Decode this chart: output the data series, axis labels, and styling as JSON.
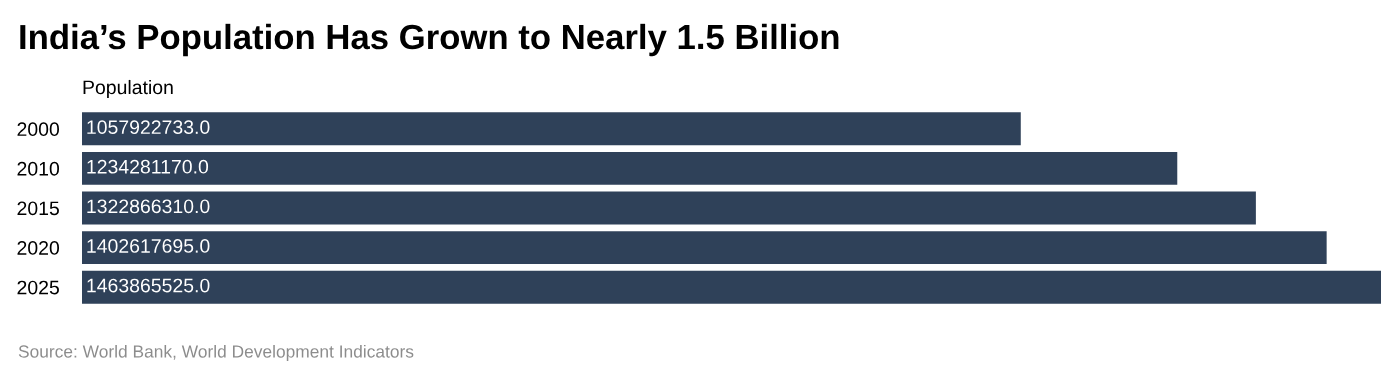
{
  "chart_data": {
    "type": "bar",
    "orientation": "horizontal",
    "title": "India’s Population Has Grown to Nearly 1.5 Billion",
    "xlabel": "Population",
    "categories": [
      "2000",
      "2010",
      "2015",
      "2020",
      "2025"
    ],
    "series": [
      {
        "color": "#2f4159",
        "values": [
          1057922733,
          1234281170,
          1322866310,
          1402617695,
          1463865525
        ],
        "value_labels": [
          "1057922733.0",
          "1234281170.0",
          "1322866310.0",
          "1402617695.0",
          "1463865525.0"
        ]
      }
    ],
    "annotations": [
      "Source: World Bank, World Development Indicators"
    ],
    "grid": false,
    "legend": false
  }
}
